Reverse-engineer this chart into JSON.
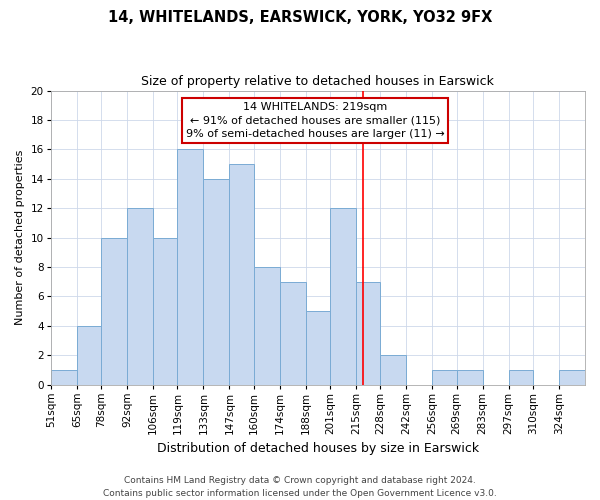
{
  "title": "14, WHITELANDS, EARSWICK, YORK, YO32 9FX",
  "subtitle": "Size of property relative to detached houses in Earswick",
  "xlabel": "Distribution of detached houses by size in Earswick",
  "ylabel": "Number of detached properties",
  "bin_labels": [
    "51sqm",
    "65sqm",
    "78sqm",
    "92sqm",
    "106sqm",
    "119sqm",
    "133sqm",
    "147sqm",
    "160sqm",
    "174sqm",
    "188sqm",
    "201sqm",
    "215sqm",
    "228sqm",
    "242sqm",
    "256sqm",
    "269sqm",
    "283sqm",
    "297sqm",
    "310sqm",
    "324sqm"
  ],
  "bin_edges": [
    51,
    65,
    78,
    92,
    106,
    119,
    133,
    147,
    160,
    174,
    188,
    201,
    215,
    228,
    242,
    256,
    269,
    283,
    297,
    310,
    324,
    338
  ],
  "counts": [
    1,
    4,
    10,
    12,
    10,
    16,
    14,
    15,
    8,
    7,
    5,
    12,
    7,
    2,
    0,
    1,
    1,
    0,
    1,
    0,
    1
  ],
  "bar_color": "#c8d9f0",
  "bar_edge_color": "#7aabd4",
  "red_line_x": 219,
  "annotation_line1": "14 WHITELANDS: 219sqm",
  "annotation_line2": "← 91% of detached houses are smaller (115)",
  "annotation_line3": "9% of semi-detached houses are larger (11) →",
  "annotation_box_color": "#ffffff",
  "annotation_box_edge_color": "#cc0000",
  "ylim": [
    0,
    20
  ],
  "yticks": [
    0,
    2,
    4,
    6,
    8,
    10,
    12,
    14,
    16,
    18,
    20
  ],
  "footer_line1": "Contains HM Land Registry data © Crown copyright and database right 2024.",
  "footer_line2": "Contains public sector information licensed under the Open Government Licence v3.0.",
  "title_fontsize": 10.5,
  "subtitle_fontsize": 9,
  "xlabel_fontsize": 9,
  "ylabel_fontsize": 8,
  "tick_fontsize": 7.5,
  "annotation_fontsize": 8,
  "footer_fontsize": 6.5,
  "bg_color": "#ffffff",
  "grid_color": "#cdd8ea"
}
